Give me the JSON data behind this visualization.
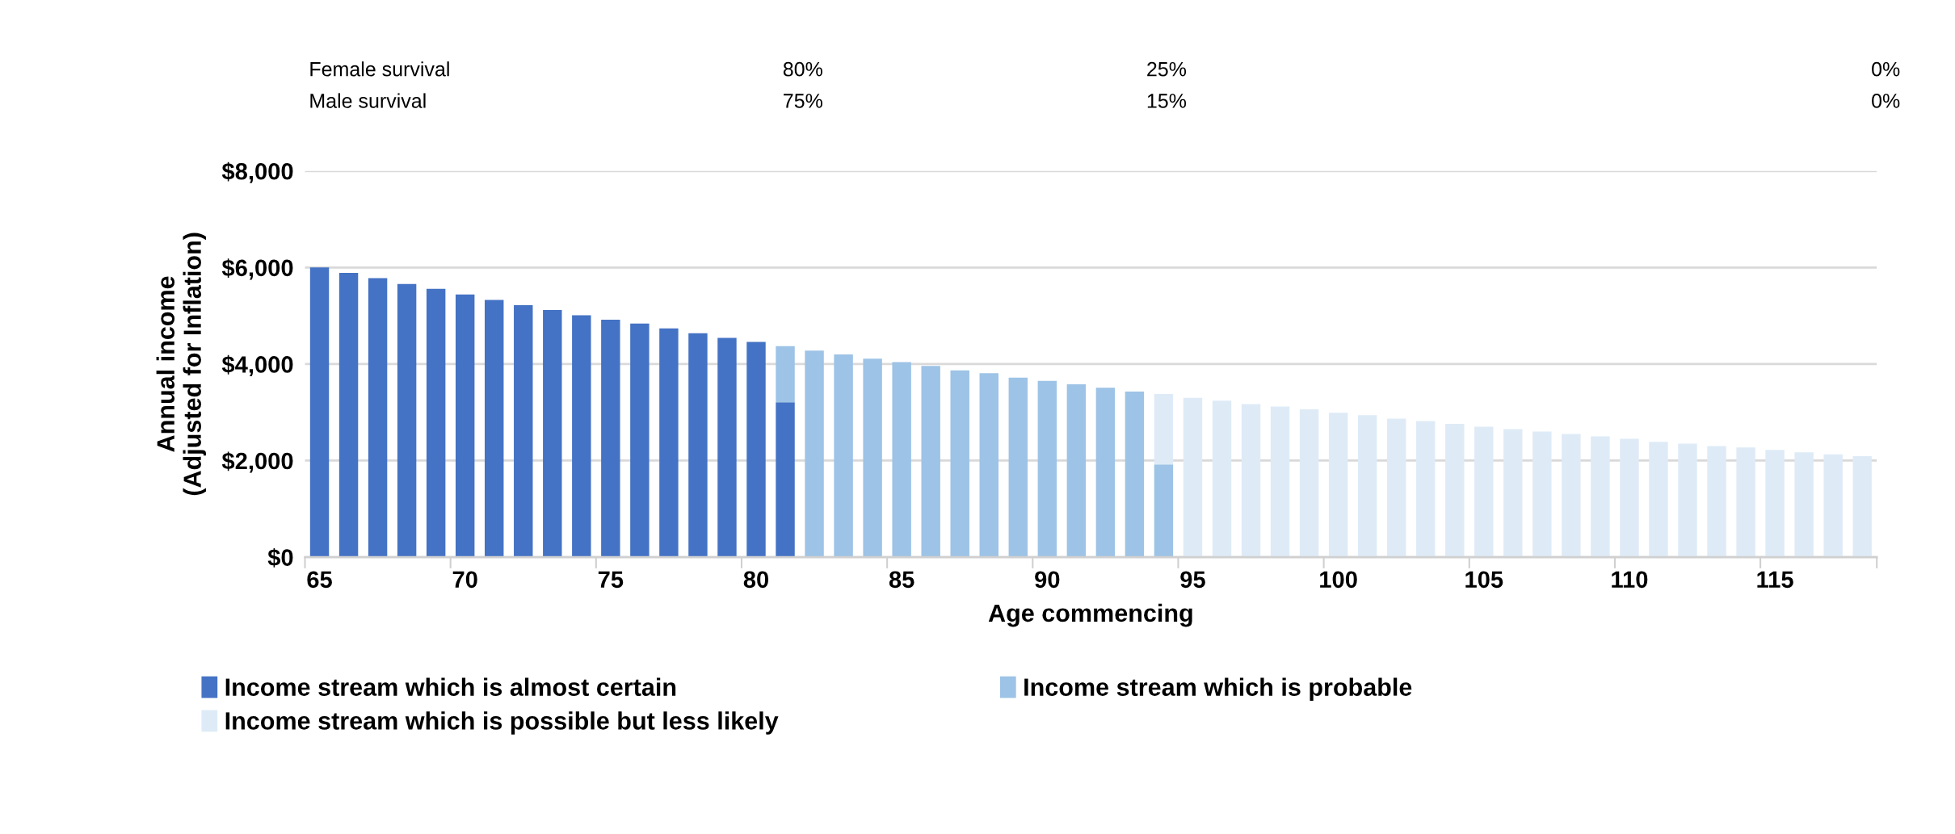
{
  "chart_data": {
    "type": "bar",
    "stacked": true,
    "xlabel": "Age commencing",
    "ylabel": "Annual income\n(Adjusted for Inflation)",
    "categories": [
      "65",
      null,
      null,
      null,
      null,
      "70",
      null,
      null,
      null,
      null,
      "75",
      null,
      null,
      null,
      null,
      "80",
      null,
      null,
      null,
      null,
      "85",
      null,
      null,
      null,
      null,
      "90",
      null,
      null,
      null,
      null,
      "95",
      null,
      null,
      null,
      null,
      "100",
      null,
      null,
      null,
      null,
      "105",
      null,
      null,
      null,
      null,
      "110",
      null,
      null,
      null,
      null,
      "115",
      null,
      null,
      null
    ],
    "series": [
      {
        "name": "Income stream which is almost certain",
        "color": "#4472c4",
        "values": [
          6000,
          5890,
          5780,
          5660,
          5560,
          5440,
          5330,
          5220,
          5120,
          5010,
          4920,
          4840,
          4740,
          4640,
          4540,
          4460,
          3210,
          null,
          null,
          null,
          null,
          null,
          null,
          null,
          null,
          null,
          null,
          null,
          null,
          null,
          null,
          null,
          null,
          null,
          null,
          null,
          null,
          null,
          null,
          null,
          null,
          null,
          null,
          null,
          null,
          null,
          null,
          null,
          null,
          null,
          null,
          null,
          null,
          null
        ]
      },
      {
        "name": "Income stream which is probable",
        "color": "#9dc3e6",
        "values": [
          null,
          null,
          null,
          null,
          null,
          null,
          null,
          null,
          null,
          null,
          null,
          null,
          null,
          null,
          null,
          null,
          1160,
          4280,
          4200,
          4110,
          4040,
          3960,
          3870,
          3810,
          3720,
          3650,
          3580,
          3510,
          3430,
          1920,
          null,
          null,
          null,
          null,
          null,
          null,
          null,
          null,
          null,
          null,
          null,
          null,
          null,
          null,
          null,
          null,
          null,
          null,
          null,
          null,
          null,
          null,
          null,
          null
        ]
      },
      {
        "name": "Income stream which is possible but less likely",
        "color": "#deebf7",
        "values": [
          null,
          null,
          null,
          null,
          null,
          null,
          null,
          null,
          null,
          null,
          null,
          null,
          null,
          null,
          null,
          null,
          null,
          null,
          null,
          null,
          null,
          null,
          null,
          null,
          null,
          null,
          null,
          null,
          null,
          1460,
          3300,
          3240,
          3170,
          3120,
          3060,
          2990,
          2940,
          2870,
          2820,
          2760,
          2700,
          2650,
          2600,
          2550,
          2500,
          2450,
          2390,
          2350,
          2300,
          2270,
          2220,
          2170,
          2130,
          2090
        ]
      }
    ],
    "ylim": [
      0,
      8000
    ],
    "yticks": [
      {
        "value": 0,
        "label": "$0"
      },
      {
        "value": 2000,
        "label": "$2,000"
      },
      {
        "value": 4000,
        "label": "$4,000"
      },
      {
        "value": 6000,
        "label": "$6,000"
      },
      {
        "value": 8000,
        "label": "$8,000"
      }
    ],
    "grid": "y",
    "legend": "bottom",
    "annotations": [
      "Female survival",
      "80%",
      "25%",
      "0%",
      "Male survival",
      "75%",
      "15%",
      "0%"
    ]
  }
}
